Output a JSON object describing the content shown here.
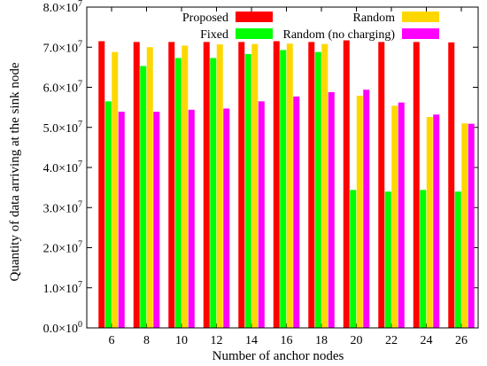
{
  "chart_data": {
    "type": "bar",
    "xlabel": "Number of anchor nodes",
    "ylabel": "Quantity of data arriving at the sink node",
    "categories": [
      "6",
      "8",
      "10",
      "12",
      "14",
      "16",
      "18",
      "20",
      "22",
      "24",
      "26"
    ],
    "ylim": [
      0,
      80000000
    ],
    "yticks": [
      0,
      10000000,
      20000000,
      30000000,
      40000000,
      50000000,
      60000000,
      70000000,
      80000000
    ],
    "ytick_labels": [
      {
        "mant": "0.0×10",
        "exp": "0"
      },
      {
        "mant": "1.0×10",
        "exp": "7"
      },
      {
        "mant": "2.0×10",
        "exp": "7"
      },
      {
        "mant": "3.0×10",
        "exp": "7"
      },
      {
        "mant": "4.0×10",
        "exp": "7"
      },
      {
        "mant": "5.0×10",
        "exp": "7"
      },
      {
        "mant": "6.0×10",
        "exp": "7"
      },
      {
        "mant": "7.0×10",
        "exp": "7"
      },
      {
        "mant": "8.0×10",
        "exp": "7"
      }
    ],
    "grid": false,
    "legend_placement": "top",
    "series": [
      {
        "name": "Proposed",
        "color": "#ff0000",
        "values": [
          71500000,
          71300000,
          71300000,
          71300000,
          71300000,
          71500000,
          71300000,
          71700000,
          71300000,
          71300000,
          71200000
        ]
      },
      {
        "name": "Fixed",
        "color": "#00ff00",
        "values": [
          56500000,
          65300000,
          67300000,
          67300000,
          68300000,
          69300000,
          68800000,
          34400000,
          34000000,
          34400000,
          34000000
        ]
      },
      {
        "name": "Random",
        "color": "#ffd700",
        "values": [
          68800000,
          70000000,
          70400000,
          70700000,
          70800000,
          70900000,
          70800000,
          57900000,
          55400000,
          52600000,
          51000000
        ]
      },
      {
        "name": "Random (no charging)",
        "color": "#ff00ff",
        "values": [
          53900000,
          53900000,
          54400000,
          54700000,
          56500000,
          57700000,
          58800000,
          59400000,
          56200000,
          53200000,
          50900000
        ]
      }
    ]
  }
}
